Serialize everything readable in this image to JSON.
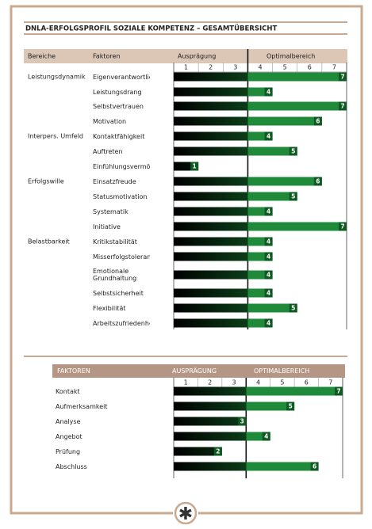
{
  "chart_data": [
    {
      "type": "bar",
      "orientation": "horizontal",
      "title": "DNLA-ERFOLGSPROFIL SOZIALE KOMPETENZ – GESAMTÜBERSICHT",
      "headers": [
        "Bereiche",
        "Faktoren",
        "Ausprägung",
        "Optimalbereich"
      ],
      "groups": [
        "Leistungsdynamik",
        null,
        null,
        null,
        "Interpers. Umfeld",
        null,
        null,
        "Erfolgswille",
        null,
        null,
        null,
        "Belastbarkeit",
        null,
        null,
        null,
        null,
        null
      ],
      "categories": [
        "Eigenverantwortlichkeit",
        "Leistungsdrang",
        "Selbstvertrauen",
        "Motivation",
        "Kontaktfähigkeit",
        "Auftreten",
        "Einfühlungsvermögen",
        "Einsatzfreude",
        "Statusmotivation",
        "Systematik",
        "Initiative",
        "Kritikstabilität",
        "Misserfolgstoleranz",
        "Emotionale Grundhaltung",
        "Selbstsicherheit",
        "Flexibilität",
        "Arbeitszufriedenheit"
      ],
      "values": [
        7,
        4,
        7,
        6,
        4,
        5,
        1,
        6,
        5,
        4,
        7,
        4,
        4,
        4,
        4,
        5,
        4
      ],
      "xlim": [
        0,
        7
      ],
      "xticks": [
        1,
        2,
        3,
        4,
        5,
        6,
        7
      ],
      "optimal_from": 3,
      "color": "#1f8a3a"
    },
    {
      "type": "bar",
      "orientation": "horizontal",
      "headers": [
        "FAKTOREN",
        "AUSPRÄGUNG",
        "OPTIMALBEREICH"
      ],
      "categories": [
        "Kontakt",
        "Aufmerksamkeit",
        "Analyse",
        "Angebot",
        "Prüfung",
        "Abschluss"
      ],
      "values": [
        7,
        5,
        3,
        4,
        2,
        6
      ],
      "xlim": [
        0,
        7
      ],
      "xticks": [
        1,
        2,
        3,
        4,
        5,
        6,
        7
      ],
      "optimal_from": 3,
      "color": "#1f8a3a"
    }
  ]
}
